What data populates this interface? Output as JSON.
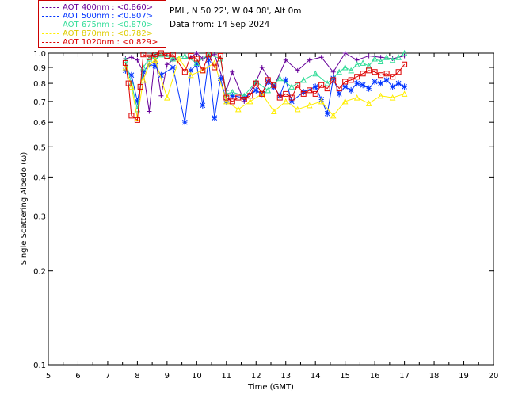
{
  "header": {
    "site": "PML, N 50 22', W 04 08', Alt 0m",
    "date": "Data from: 14 Sep 2024"
  },
  "legend": [
    {
      "label": "AOT  400nm : <0.860>",
      "color": "#660099"
    },
    {
      "label": "AOT  500nm : <0.807>",
      "color": "#0033ff"
    },
    {
      "label": "AOT  675nm : <0.870>",
      "color": "#33dd99"
    },
    {
      "label": "AOT  870nm : <0.782>",
      "color": "#ffee00"
    },
    {
      "label": "AOT 1020nm : <0.829>",
      "color": "#dd0000"
    }
  ],
  "chart_data": {
    "type": "scatter",
    "xlabel": "Time (GMT)",
    "ylabel": "Single Scattering Albedo (ω)",
    "xlim": [
      5,
      20
    ],
    "ylim": [
      0.1,
      1.0
    ],
    "yscale": "log",
    "xticks": [
      5,
      6,
      7,
      8,
      9,
      10,
      11,
      12,
      13,
      14,
      15,
      16,
      17,
      18,
      19,
      20
    ],
    "yticks": [
      0.1,
      0.2,
      0.3,
      0.4,
      0.5,
      0.6,
      0.7,
      0.8,
      0.9,
      1.0
    ],
    "ytick_labels": [
      "0.1",
      "0.2",
      "0.3",
      "0.4",
      "0.5",
      "0.6",
      "0.7",
      "0.8",
      "0.9",
      "1.0"
    ],
    "series": [
      {
        "name": "AOT 400nm",
        "color": "#660099",
        "marker": "plus",
        "x": [
          7.6,
          7.8,
          8.0,
          8.2,
          8.4,
          8.6,
          8.8,
          9.0,
          9.2,
          9.8,
          10.0,
          10.2,
          10.6,
          11.0,
          11.2,
          11.6,
          12.0,
          12.2,
          12.6,
          13.0,
          13.4,
          13.8,
          14.2,
          14.6,
          15.0,
          15.4,
          15.8,
          16.2,
          16.6,
          17.0
        ],
        "y": [
          0.96,
          0.97,
          0.95,
          0.87,
          0.65,
          0.98,
          0.73,
          0.92,
          0.95,
          0.97,
          1.0,
          0.96,
          0.99,
          0.76,
          0.87,
          0.7,
          0.81,
          0.9,
          0.78,
          0.95,
          0.88,
          0.95,
          0.97,
          0.87,
          1.0,
          0.95,
          0.98,
          0.97,
          0.96,
          0.98
        ]
      },
      {
        "name": "AOT 500nm",
        "color": "#0033ff",
        "marker": "star",
        "x": [
          7.6,
          7.8,
          8.0,
          8.2,
          8.4,
          8.6,
          8.8,
          9.2,
          9.6,
          9.8,
          10.0,
          10.2,
          10.4,
          10.6,
          10.8,
          11.0,
          11.2,
          11.6,
          12.0,
          12.2,
          12.4,
          12.6,
          12.8,
          13.0,
          13.2,
          13.6,
          14.0,
          14.2,
          14.4,
          14.6,
          14.8,
          15.0,
          15.2,
          15.4,
          15.6,
          15.8,
          16.0,
          16.2,
          16.4,
          16.6,
          16.8,
          17.0
        ],
        "y": [
          0.88,
          0.85,
          0.7,
          0.87,
          0.92,
          0.91,
          0.85,
          0.9,
          0.6,
          0.88,
          0.92,
          0.68,
          0.95,
          0.62,
          0.83,
          0.7,
          0.73,
          0.72,
          0.76,
          0.74,
          0.81,
          0.78,
          0.73,
          0.82,
          0.7,
          0.75,
          0.78,
          0.71,
          0.64,
          0.83,
          0.74,
          0.78,
          0.76,
          0.8,
          0.79,
          0.77,
          0.81,
          0.8,
          0.82,
          0.78,
          0.8,
          0.78
        ]
      },
      {
        "name": "AOT 675nm",
        "color": "#33dd99",
        "marker": "triangle",
        "x": [
          7.6,
          7.8,
          8.0,
          8.2,
          8.4,
          8.6,
          8.8,
          9.2,
          9.6,
          10.0,
          10.4,
          10.8,
          11.0,
          11.2,
          11.6,
          12.0,
          12.4,
          12.8,
          13.2,
          13.6,
          14.0,
          14.4,
          14.8,
          15.0,
          15.2,
          15.4,
          15.6,
          15.8,
          16.0,
          16.2,
          16.4,
          16.6,
          16.8,
          17.0
        ],
        "y": [
          0.95,
          0.8,
          0.66,
          0.9,
          0.96,
          0.98,
          0.99,
          0.96,
          0.98,
          0.93,
          0.99,
          0.96,
          0.74,
          0.75,
          0.73,
          0.81,
          0.76,
          0.83,
          0.78,
          0.82,
          0.86,
          0.8,
          0.87,
          0.9,
          0.88,
          0.92,
          0.93,
          0.91,
          0.96,
          0.94,
          0.97,
          0.95,
          0.97,
          1.0
        ]
      },
      {
        "name": "AOT 870nm",
        "color": "#ffee00",
        "marker": "triangle",
        "x": [
          7.6,
          7.8,
          8.0,
          8.2,
          8.4,
          8.6,
          9.0,
          9.4,
          9.8,
          10.2,
          10.6,
          11.0,
          11.4,
          11.8,
          12.2,
          12.6,
          13.0,
          13.4,
          13.8,
          14.2,
          14.6,
          15.0,
          15.4,
          15.8,
          16.2,
          16.6,
          17.0
        ],
        "y": [
          0.9,
          0.78,
          0.62,
          0.82,
          0.92,
          0.95,
          0.72,
          0.96,
          0.85,
          0.88,
          0.93,
          0.7,
          0.66,
          0.7,
          0.74,
          0.65,
          0.7,
          0.66,
          0.68,
          0.7,
          0.63,
          0.7,
          0.72,
          0.69,
          0.73,
          0.72,
          0.74
        ]
      },
      {
        "name": "AOT 1020nm",
        "color": "#dd0000",
        "marker": "square",
        "x": [
          7.6,
          7.7,
          7.8,
          8.0,
          8.1,
          8.2,
          8.4,
          8.6,
          8.8,
          9.0,
          9.2,
          9.6,
          9.8,
          10.0,
          10.2,
          10.4,
          10.6,
          10.8,
          11.0,
          11.2,
          11.4,
          11.6,
          11.8,
          12.0,
          12.2,
          12.4,
          12.6,
          12.8,
          13.0,
          13.2,
          13.4,
          13.6,
          13.8,
          14.0,
          14.2,
          14.4,
          14.6,
          14.8,
          15.0,
          15.2,
          15.4,
          15.6,
          15.8,
          16.0,
          16.2,
          16.4,
          16.6,
          16.8,
          17.0
        ],
        "y": [
          0.93,
          0.8,
          0.63,
          0.61,
          0.78,
          0.99,
          0.97,
          0.99,
          1.0,
          0.98,
          0.99,
          0.87,
          0.98,
          0.96,
          0.88,
          0.99,
          0.9,
          0.98,
          0.72,
          0.7,
          0.72,
          0.71,
          0.73,
          0.8,
          0.74,
          0.82,
          0.79,
          0.72,
          0.74,
          0.72,
          0.79,
          0.74,
          0.76,
          0.74,
          0.79,
          0.77,
          0.82,
          0.77,
          0.81,
          0.82,
          0.84,
          0.86,
          0.88,
          0.87,
          0.85,
          0.86,
          0.84,
          0.87,
          0.92
        ]
      }
    ]
  }
}
